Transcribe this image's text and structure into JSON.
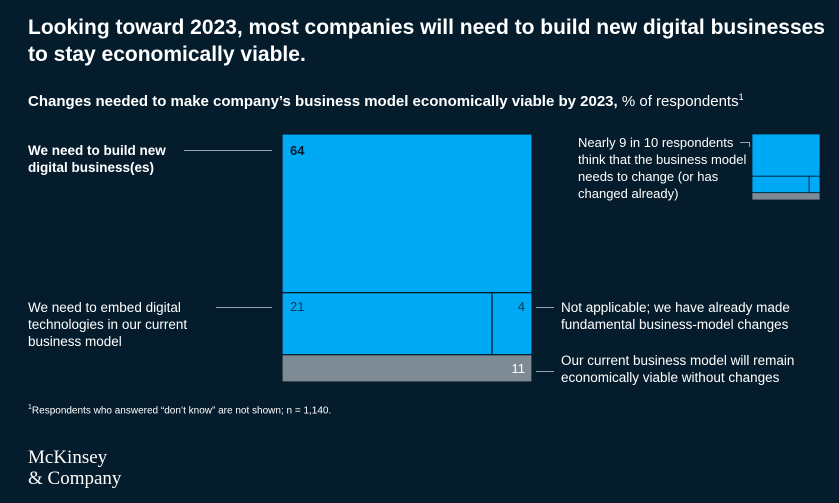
{
  "title": "Looking toward 2023, most companies will need to build new digital businesses to stay economically viable.",
  "subtitle": {
    "main": "Changes needed to make company’s business model economically viable by 2023,",
    "unit": "% of respondents",
    "footnote_marker": "1"
  },
  "chart_data": {
    "type": "treemap",
    "unit": "% of respondents",
    "segments": [
      {
        "label": "We need to build new digital business(es)",
        "value": 64
      },
      {
        "label": "We need to embed digital technologies in our current business model",
        "value": 21
      },
      {
        "label": "Not applicable; we have already made fundamental business-model changes",
        "value": 4
      },
      {
        "label": "Our current business model will remain economically viable without changes",
        "value": 11
      }
    ],
    "annotation": "Nearly 9 in 10 respondents think that the business model needs to change (or has changed already)"
  },
  "colors": {
    "background": "#051c2c",
    "change_needed": "#00a9f4",
    "no_change": "#7f8b94",
    "border": "#051c2c",
    "leader_line": "#9aa5ad"
  },
  "footnote": {
    "marker": "1",
    "text": "Respondents who answered “don’t know” are not shown; n = 1,140."
  },
  "logo": {
    "line1": "McKinsey",
    "line2": "& Company"
  }
}
